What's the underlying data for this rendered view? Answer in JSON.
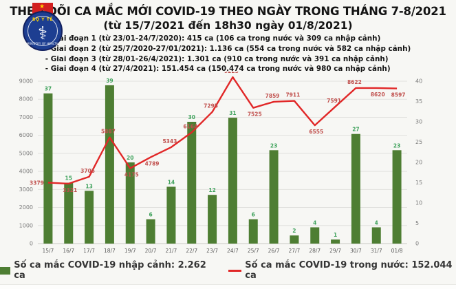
{
  "header": {
    "title": "THEO DÕI CA MẮC MỚI COVID-19 THEO NGÀY TRONG THÁNG 7-8/2021",
    "subtitle": "(từ 15/7/2021 đến 18h30 ngày 01/8/2021)",
    "bullets": [
      "- Giai đoạn 1 (từ 23/01-24/7/2020): 415 ca (106 ca trong nước và 309 ca nhập cảnh)",
      "- Giai đoạn 2 (từ 25/7/2020-27/01/2021): 1.136 ca (554 ca trong nước và 582 ca nhập cảnh)",
      "- Giai đoạn 3 (từ 28/01-26/4/2021): 1.301 ca (910 ca trong nước và 391 ca nhập cảnh)",
      "- Giai đoạn 4 (từ 27/4/2021): 151.454 ca (150.474 ca trong nước và 980 ca nhập cảnh)"
    ],
    "logo": {
      "label": "BỘ Y TẾ",
      "sublabel": "MINISTRY OF HEALTH",
      "symbol": "⚕",
      "star": "★"
    }
  },
  "chart_data": {
    "type": "bar+line",
    "categories": [
      "15/7",
      "16/7",
      "17/7",
      "18/7",
      "19/7",
      "20/7",
      "21/7",
      "22/7",
      "23/7",
      "24/7",
      "25/7",
      "26/7",
      "27/7",
      "28/7",
      "29/7",
      "30/7",
      "31/7",
      "01/8"
    ],
    "series": [
      {
        "name": "Số ca mắc COVID-19 nhập cảnh",
        "type": "bar",
        "axis": "right",
        "values": [
          37,
          15,
          13,
          39,
          20,
          6,
          14,
          30,
          12,
          31,
          6,
          23,
          2,
          4,
          1,
          27,
          4,
          23
        ]
      },
      {
        "name": "Số ca mắc COVID-19 trong nước",
        "type": "line",
        "axis": "left",
        "values": [
          3379,
          3321,
          3705,
          5887,
          4175,
          4789,
          5343,
          6164,
          7295,
          9225,
          7525,
          7859,
          7911,
          6555,
          7591,
          8622,
          8620,
          8597
        ]
      }
    ],
    "left_axis": {
      "min": 0,
      "max": 9000,
      "step": 1000
    },
    "right_axis": {
      "min": 0,
      "max": 40,
      "step": 5
    },
    "grid": true,
    "legend_position": "bottom",
    "line_label_sides": [
      "left",
      "below",
      "above",
      "above",
      "below",
      "below",
      "above",
      "above",
      "above",
      "above",
      "below",
      "above",
      "above",
      "below",
      "above",
      "above",
      "below",
      "below"
    ]
  },
  "legend": {
    "bar": {
      "label": "Số ca mắc COVID-19 nhập cảnh: 2.262 ca"
    },
    "line": {
      "label": "Số ca mắc COVID-19 trong nước: 152.044 ca"
    }
  },
  "colors": {
    "bar": "#4e7e33",
    "bar_label": "#3fa25c",
    "line": "#e12727",
    "line_label": "#c0504d",
    "axis_text": "#7a7a7a",
    "grid": "#e1e1de",
    "baseline": "#c9c9c5",
    "background": "#f7f7f4"
  }
}
